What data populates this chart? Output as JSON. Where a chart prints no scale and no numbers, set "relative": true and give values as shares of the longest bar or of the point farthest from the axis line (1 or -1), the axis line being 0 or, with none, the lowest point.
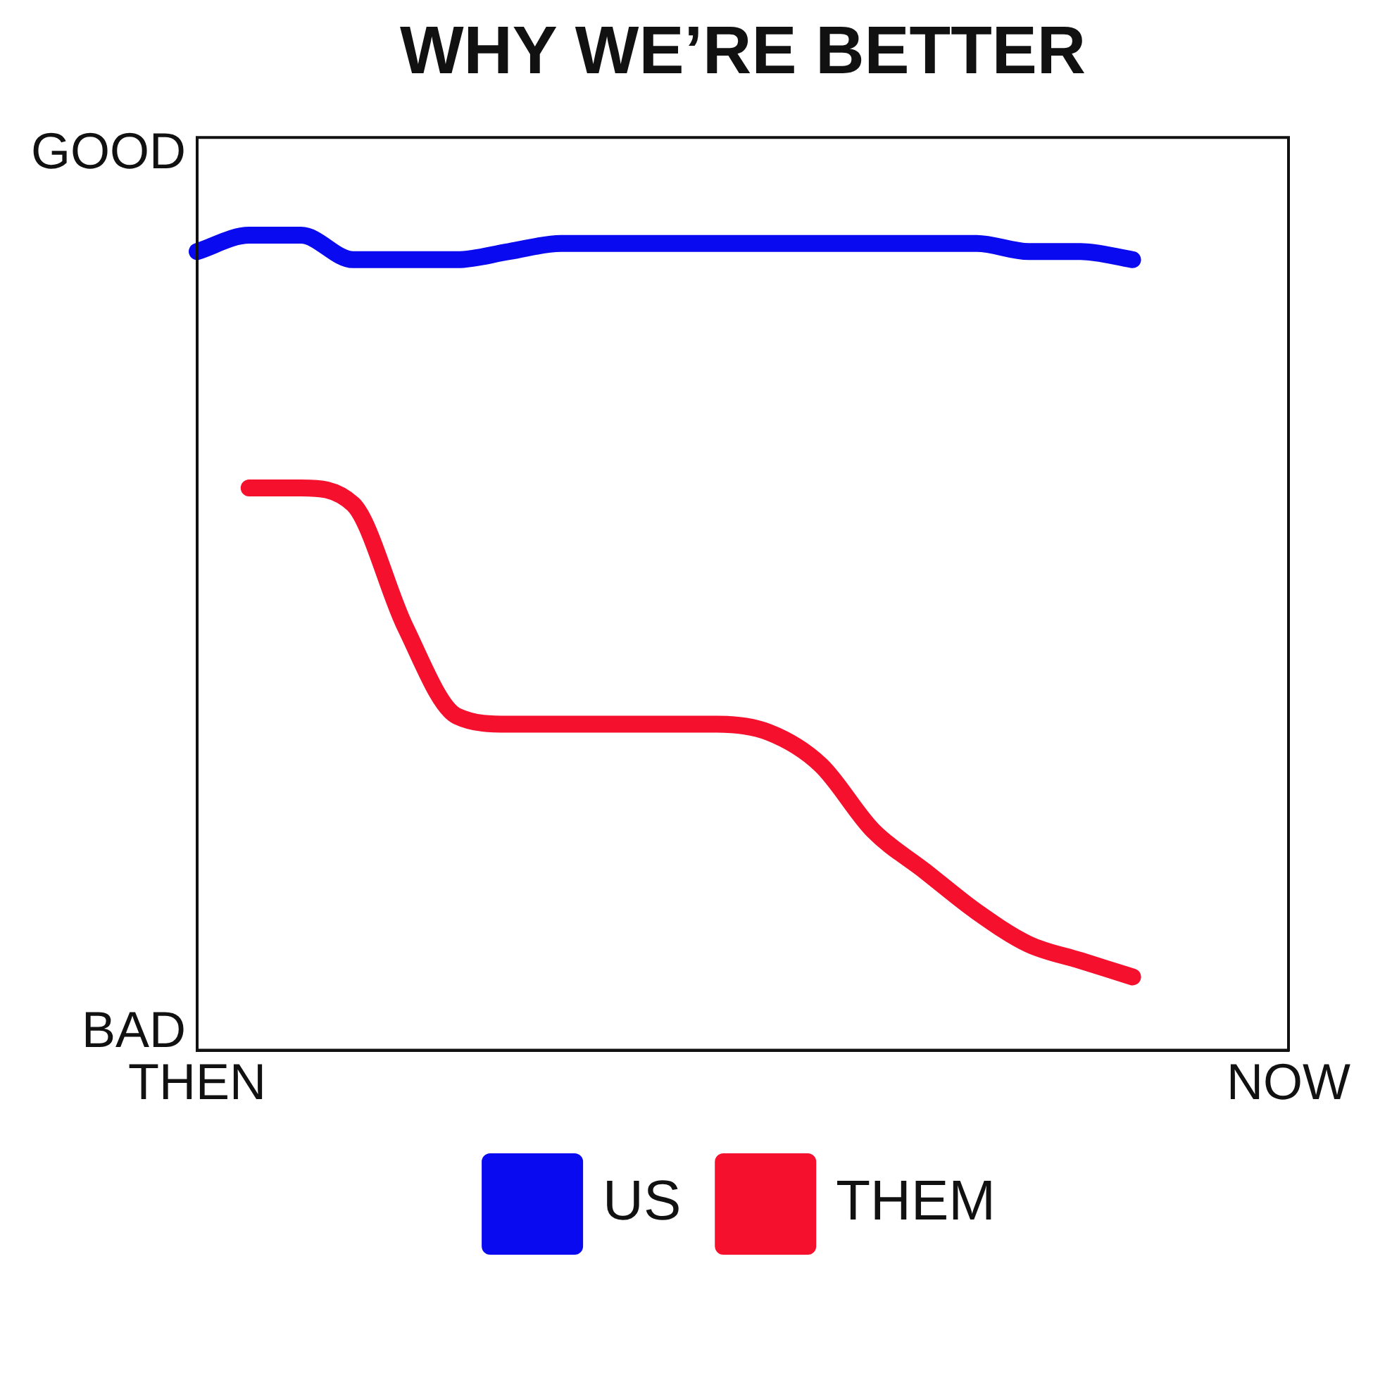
{
  "chart_data": {
    "type": "line",
    "title": "WHY WE’RE BETTER",
    "relative": true,
    "categories": [
      "THEN",
      null,
      null,
      null,
      null,
      null,
      null,
      null,
      null,
      null,
      null,
      null,
      null,
      null,
      null,
      null,
      null,
      null,
      null,
      null,
      null,
      "NOW"
    ],
    "annotations": [
      "GOOD",
      "BAD"
    ],
    "grid": false,
    "legend": "bottom",
    "marker": "none",
    "line_style": "solid",
    "series": [
      {
        "name": "US",
        "color": "#0a0af0",
        "values": [
          0.98,
          1.0,
          1.0,
          0.97,
          0.97,
          0.97,
          0.98,
          0.99,
          0.99,
          0.99,
          0.99,
          0.99,
          0.99,
          0.99,
          0.99,
          0.99,
          0.98,
          0.98,
          0.97,
          null,
          null,
          null
        ]
      },
      {
        "name": "THEM",
        "color": "#f5102e",
        "values": [
          null,
          0.69,
          0.69,
          0.67,
          0.52,
          0.41,
          0.4,
          0.4,
          0.4,
          0.4,
          0.4,
          0.39,
          0.35,
          0.27,
          0.22,
          0.17,
          0.13,
          0.11,
          0.09,
          null,
          null,
          null
        ]
      }
    ]
  }
}
